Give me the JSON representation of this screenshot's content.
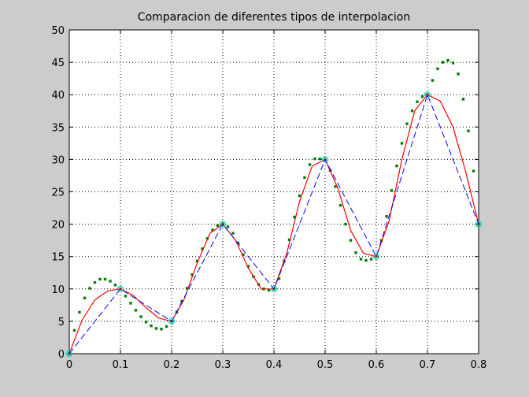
{
  "chart_data": {
    "type": "line",
    "title": "Comparacion de diferentes tipos de interpolacion",
    "xlabel": "",
    "ylabel": "",
    "xlim": [
      0,
      0.8
    ],
    "ylim": [
      0,
      50
    ],
    "grid": true,
    "x_ticks": [
      0,
      0.1,
      0.2,
      0.3,
      0.4,
      0.5,
      0.6,
      0.7,
      0.8
    ],
    "x_tick_labels": [
      "0",
      "0.1",
      "0.2",
      "0.3",
      "0.4",
      "0.5",
      "0.6",
      "0.7",
      "0.8"
    ],
    "y_ticks": [
      0,
      5,
      10,
      15,
      20,
      25,
      30,
      35,
      40,
      45,
      50
    ],
    "y_tick_labels": [
      "0",
      "5",
      "10",
      "15",
      "20",
      "25",
      "30",
      "35",
      "40",
      "45",
      "50"
    ],
    "colors": {
      "data_points": "#00cccc",
      "linear": "#0000ff",
      "spline": "#ff0000",
      "polynomial": "#008000",
      "grid": "#000000",
      "axes_background": "#ffffff"
    },
    "series": [
      {
        "style": "circle-markers",
        "x": [
          0,
          0.1,
          0.2,
          0.3,
          0.4,
          0.5,
          0.6,
          0.7,
          0.8
        ],
        "y": [
          0,
          10,
          5,
          20,
          10,
          30,
          15,
          40,
          20
        ]
      },
      {
        "style": "dashed-line",
        "x": [
          0,
          0.1,
          0.2,
          0.3,
          0.4,
          0.5,
          0.6,
          0.7,
          0.8
        ],
        "y": [
          0,
          10,
          5,
          20,
          10,
          30,
          15,
          40,
          20
        ]
      },
      {
        "style": "solid-line",
        "x": [
          0,
          0.025,
          0.05,
          0.075,
          0.1,
          0.125,
          0.15,
          0.175,
          0.2,
          0.225,
          0.25,
          0.275,
          0.3,
          0.325,
          0.35,
          0.375,
          0.4,
          0.425,
          0.45,
          0.475,
          0.5,
          0.525,
          0.55,
          0.575,
          0.6,
          0.625,
          0.65,
          0.675,
          0.7,
          0.725,
          0.75,
          0.775,
          0.8
        ],
        "y": [
          0,
          5.2,
          8.3,
          9.7,
          10,
          9.0,
          7.1,
          5.5,
          5,
          8.5,
          14.0,
          18.6,
          20,
          17.5,
          13.2,
          10.0,
          10,
          15.5,
          23.5,
          29.0,
          30,
          25.5,
          19.0,
          15.5,
          15,
          20.5,
          30.0,
          37.5,
          40,
          39.0,
          35.0,
          28.0,
          20
        ]
      },
      {
        "style": "dotted-markers",
        "x": [
          0,
          0.01,
          0.02,
          0.03,
          0.04,
          0.05,
          0.06,
          0.07,
          0.08,
          0.09,
          0.1,
          0.11,
          0.12,
          0.13,
          0.14,
          0.15,
          0.16,
          0.17,
          0.18,
          0.19,
          0.2,
          0.21,
          0.22,
          0.23,
          0.24,
          0.25,
          0.26,
          0.27,
          0.28,
          0.29,
          0.3,
          0.31,
          0.32,
          0.33,
          0.34,
          0.35,
          0.36,
          0.37,
          0.38,
          0.39,
          0.4,
          0.41,
          0.42,
          0.43,
          0.44,
          0.45,
          0.46,
          0.47,
          0.48,
          0.49,
          0.5,
          0.51,
          0.52,
          0.53,
          0.54,
          0.55,
          0.56,
          0.57,
          0.58,
          0.59,
          0.6,
          0.61,
          0.62,
          0.63,
          0.64,
          0.65,
          0.66,
          0.67,
          0.68,
          0.69,
          0.7,
          0.71,
          0.72,
          0.73,
          0.74,
          0.75,
          0.76,
          0.77,
          0.78,
          0.79,
          0.8
        ],
        "y": [
          0,
          3.6,
          6.4,
          8.6,
          10.1,
          11.0,
          11.5,
          11.5,
          11.2,
          10.6,
          10,
          8.9,
          7.8,
          6.7,
          5.7,
          4.9,
          4.3,
          3.9,
          3.8,
          4.2,
          5,
          6.4,
          8.1,
          10.1,
          12.2,
          14.3,
          16.2,
          17.8,
          19.1,
          19.8,
          20,
          19.6,
          18.6,
          17.1,
          15.3,
          13.5,
          11.9,
          10.7,
          10.0,
          9.8,
          10,
          11.6,
          14.3,
          17.6,
          21.1,
          24.4,
          27.2,
          29.2,
          30.1,
          30.1,
          30,
          28.3,
          25.8,
          22.9,
          20.0,
          17.5,
          15.6,
          14.6,
          14.4,
          14.6,
          15,
          17.5,
          21.2,
          25.2,
          29.0,
          32.5,
          35.5,
          37.5,
          38.9,
          39.7,
          40,
          42.2,
          44.0,
          45.0,
          45.3,
          44.9,
          43.2,
          39.3,
          34.4,
          28.2,
          20
        ]
      }
    ]
  }
}
